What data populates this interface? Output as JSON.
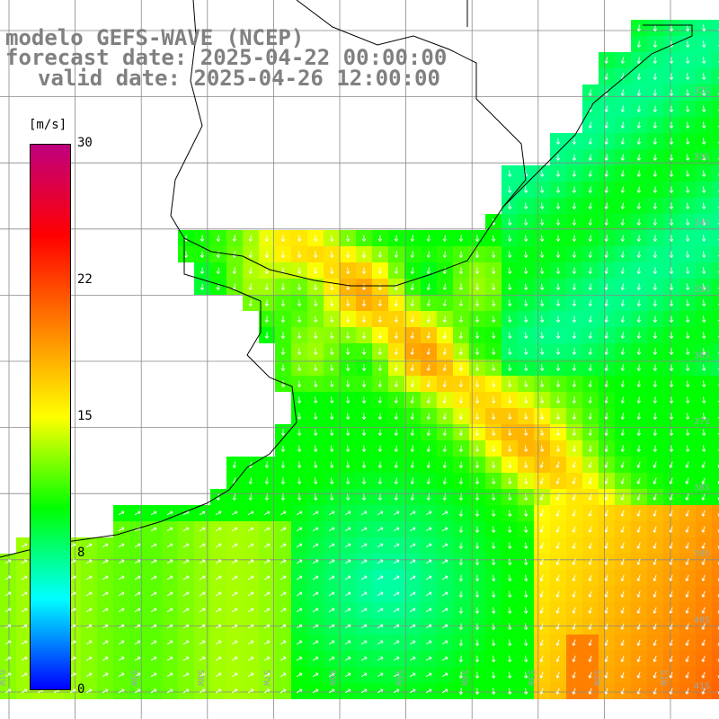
{
  "title": {
    "line1": "modelo GEFS-WAVE (NCEP)",
    "line2": "forecast date: 2025-04-22 00:00:00",
    "line3": "valid date: 2025-04-26 12:00:00"
  },
  "colorbar": {
    "unit": "[m/s]",
    "min": 0,
    "max": 30,
    "ticks": [
      {
        "label": "30",
        "value": 30
      },
      {
        "label": "22",
        "value": 22.5
      },
      {
        "label": "15",
        "value": 15
      },
      {
        "label": "8",
        "value": 7.5
      },
      {
        "label": "0",
        "value": 0
      }
    ],
    "colors": [
      "#0000ff",
      "#00ffff",
      "#00ff00",
      "#ffff00",
      "#ff8000",
      "#ff0000",
      "#c0007f"
    ]
  },
  "map": {
    "lon_range": [
      -62,
      -51
    ],
    "lat_range": [
      -41.4,
      -30.5
    ],
    "lat_labels": [
      "32S",
      "33S",
      "34S",
      "35S",
      "36S",
      "37S",
      "38S",
      "39S",
      "40S",
      "41S"
    ],
    "lon_labels": [
      "61W",
      "60W",
      "59W",
      "58W",
      "57W",
      "56W",
      "55W",
      "54W",
      "53W",
      "52W",
      "51W"
    ],
    "wind_direction_note": "vectors"
  }
}
